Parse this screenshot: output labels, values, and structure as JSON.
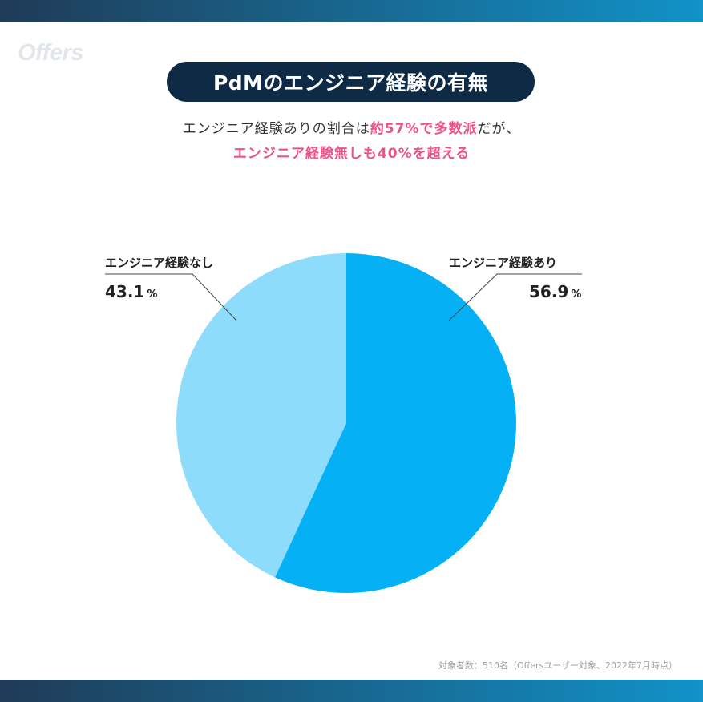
{
  "brand": {
    "logo_text": "Offers",
    "band_start_color": "#1f3b57",
    "band_end_color": "#1192c8",
    "title_bg_color": "#0f2a44",
    "highlight_color": "#f0508a"
  },
  "header": {
    "title": "PdMのエンジニア経験の有無",
    "subtitle_line1": {
      "lead": "エンジニア経験ありの割合は",
      "highlight": "約57%で多数派",
      "trail": "だが、"
    },
    "subtitle_line2": "エンジニア経験無しも40%を超える"
  },
  "chart_data": {
    "type": "pie",
    "title": "PdMのエンジニア経験の有無",
    "slices": [
      {
        "label": "エンジニア経験あり",
        "value": 56.9,
        "value_text": "56.9",
        "color": "#05b0f5"
      },
      {
        "label": "エンジニア経験なし",
        "value": 43.1,
        "value_text": "43.1",
        "color": "#8edcfc"
      }
    ],
    "unit": "%",
    "start_angle": "12 o'clock",
    "direction": "clockwise",
    "legend": "none (callout labels)"
  },
  "footnote": "対象者数：510名（Offersユーザー対象、2022年7月時点）"
}
